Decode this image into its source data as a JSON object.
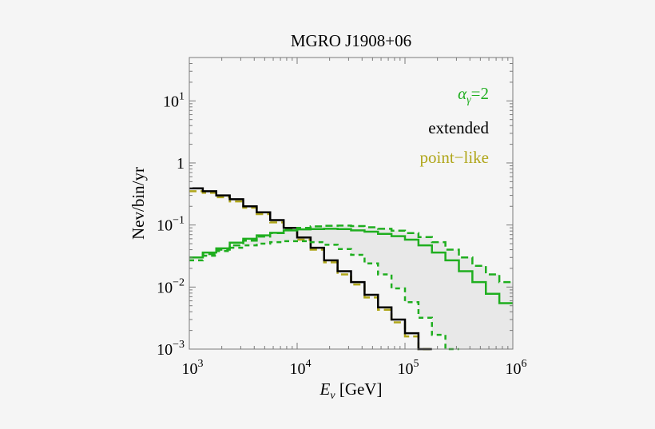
{
  "chart_data": {
    "type": "line",
    "title": "MGRO J1908+06",
    "xlabel": "E_ν [GeV]",
    "ylabel": "Nev/bin/yr",
    "xscale": "log",
    "yscale": "log",
    "xlim": [
      1000,
      1000000
    ],
    "ylim": [
      0.001,
      50
    ],
    "x_ticks": [
      {
        "value": 1000,
        "base": "10",
        "exp": "3"
      },
      {
        "value": 10000,
        "base": "10",
        "exp": "4"
      },
      {
        "value": 100000,
        "base": "10",
        "exp": "5"
      },
      {
        "value": 1000000,
        "base": "10",
        "exp": "6"
      }
    ],
    "y_ticks": [
      {
        "value": 0.001,
        "base": "10",
        "exp": "−3"
      },
      {
        "value": 0.01,
        "base": "10",
        "exp": "−2"
      },
      {
        "value": 0.1,
        "base": "10",
        "exp": "−1"
      },
      {
        "value": 1,
        "base": "1",
        "exp": ""
      },
      {
        "value": 10,
        "base": "10",
        "exp": "1"
      }
    ],
    "legend": {
      "placement": "top-right",
      "entries": [
        {
          "label": "α",
          "sub": "γ",
          "suffix": "=2",
          "color": "#1fae1f"
        },
        {
          "label": "extended",
          "color": "#000000"
        },
        {
          "label": "point−like",
          "color": "#b0a61a"
        }
      ]
    },
    "bin_edges_log10": [
      3.0,
      3.125,
      3.25,
      3.375,
      3.5,
      3.625,
      3.75,
      3.875,
      4.0,
      4.125,
      4.25,
      4.375,
      4.5,
      4.625,
      4.75,
      4.875,
      5.0,
      5.125,
      5.25,
      5.375,
      5.5,
      5.625,
      5.75,
      5.875,
      6.0
    ],
    "series": [
      {
        "style": "point-like",
        "color": "#b0a61a",
        "dash": "9 5",
        "stroke_width": 2.5,
        "values": [
          0.35,
          0.33,
          0.28,
          0.24,
          0.19,
          0.15,
          0.11,
          0.085,
          0.058,
          0.04,
          0.025,
          0.016,
          0.011,
          0.0068,
          0.0043,
          0.0027,
          0.0016,
          0.0009
        ]
      },
      {
        "style": "extended",
        "color": "#000000",
        "dash": "",
        "stroke_width": 2.5,
        "values": [
          0.39,
          0.35,
          0.3,
          0.26,
          0.2,
          0.16,
          0.12,
          0.09,
          0.063,
          0.043,
          0.027,
          0.018,
          0.012,
          0.0075,
          0.0047,
          0.003,
          0.0018,
          0.001
        ]
      },
      {
        "style": "α_γ=2 extended",
        "color": "#1fae1f",
        "dash": "",
        "stroke_width": 2.5,
        "values": [
          0.03,
          0.036,
          0.042,
          0.052,
          0.06,
          0.068,
          0.075,
          0.082,
          0.085,
          0.086,
          0.087,
          0.086,
          0.082,
          0.078,
          0.072,
          0.066,
          0.058,
          0.047,
          0.036,
          0.027,
          0.018,
          0.012,
          0.0078,
          0.0055
        ]
      },
      {
        "style": "α_γ=2 point-like",
        "color": "#1fae1f",
        "dash": "9 5",
        "stroke_width": 2.5,
        "values": [
          0.03,
          0.034,
          0.04,
          0.047,
          0.056,
          0.065,
          0.074,
          0.083,
          0.09,
          0.095,
          0.097,
          0.098,
          0.096,
          0.092,
          0.087,
          0.081,
          0.074,
          0.064,
          0.053,
          0.04,
          0.03,
          0.022,
          0.016,
          0.012
        ]
      },
      {
        "style": "steep spectrum",
        "color": "#1fae1f",
        "dash": "6 5",
        "stroke_width": 2.5,
        "values": [
          0.027,
          0.032,
          0.038,
          0.043,
          0.047,
          0.05,
          0.053,
          0.055,
          0.055,
          0.053,
          0.048,
          0.041,
          0.033,
          0.024,
          0.016,
          0.0095,
          0.0057,
          0.0032,
          0.0017,
          0.00082
        ]
      }
    ],
    "band": {
      "color": "#e8e8e8",
      "upper_series": 3,
      "lower_series": 4
    }
  }
}
